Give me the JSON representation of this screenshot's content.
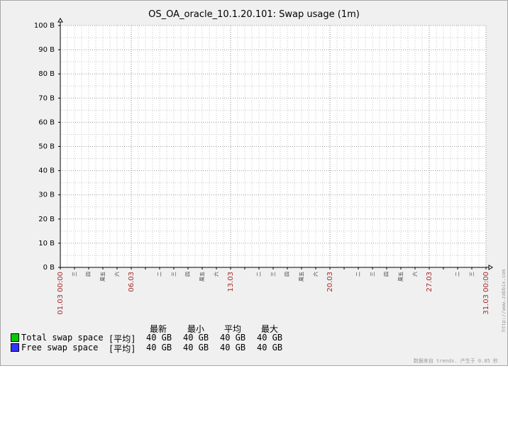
{
  "chart_data": {
    "type": "line",
    "title": "OS_OA_oracle_10.1.20.101: Swap usage (1m)",
    "ylim": [
      0,
      100
    ],
    "yticks": [
      "0 B",
      "10 B",
      "20 B",
      "30 B",
      "40 B",
      "50 B",
      "60 B",
      "70 B",
      "80 B",
      "90 B",
      "100 B"
    ],
    "xlim": [
      1,
      31
    ],
    "date_ticks": [
      {
        "day": 1,
        "label": "01.03 00:00"
      },
      {
        "day": 6,
        "label": "06.03"
      },
      {
        "day": 13,
        "label": "13.03"
      },
      {
        "day": 20,
        "label": "20.03"
      },
      {
        "day": 27,
        "label": "27.03"
      },
      {
        "day": 31,
        "label": "31.03 00:00"
      }
    ],
    "weekday_ticks": [
      {
        "day": 2,
        "label": "三"
      },
      {
        "day": 3,
        "label": "四"
      },
      {
        "day": 4,
        "label": "周五"
      },
      {
        "day": 5,
        "label": "六"
      },
      {
        "day": 8,
        "label": "二"
      },
      {
        "day": 9,
        "label": "三"
      },
      {
        "day": 10,
        "label": "四"
      },
      {
        "day": 11,
        "label": "周五"
      },
      {
        "day": 12,
        "label": "六"
      },
      {
        "day": 15,
        "label": "二"
      },
      {
        "day": 16,
        "label": "三"
      },
      {
        "day": 17,
        "label": "四"
      },
      {
        "day": 18,
        "label": "周五"
      },
      {
        "day": 19,
        "label": "六"
      },
      {
        "day": 22,
        "label": "二"
      },
      {
        "day": 23,
        "label": "三"
      },
      {
        "day": 24,
        "label": "四"
      },
      {
        "day": 25,
        "label": "周五"
      },
      {
        "day": 26,
        "label": "六"
      },
      {
        "day": 29,
        "label": "二"
      },
      {
        "day": 30,
        "label": "三"
      }
    ],
    "grid": true,
    "series": [
      {
        "name": "Total swap space",
        "color": "#00cc00",
        "values": []
      },
      {
        "name": "Free swap space",
        "color": "#3333ff",
        "values": []
      }
    ]
  },
  "legend": {
    "headers": {
      "last": "最新",
      "min": "最小",
      "avg": "平均",
      "max": "最大"
    },
    "rows": [
      {
        "name": "Total swap space",
        "func": "[平均]",
        "last": "40 GB",
        "min": "40 GB",
        "avg": "40 GB",
        "max": "40 GB",
        "color": "#00cc00"
      },
      {
        "name": "Free swap space",
        "func": "[平均]",
        "last": "40 GB",
        "min": "40 GB",
        "avg": "40 GB",
        "max": "40 GB",
        "color": "#3333ff"
      }
    ]
  },
  "side_url": "http://www.zabbix.com",
  "footer": "数据来自 trends. 产生于 0.05 秒"
}
